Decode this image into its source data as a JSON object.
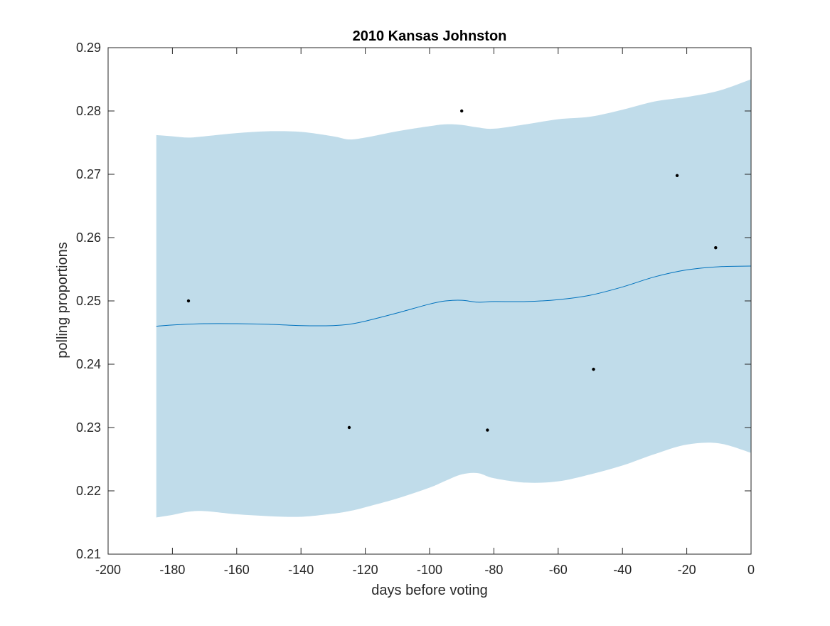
{
  "chart_data": {
    "type": "line",
    "title": "2010 Kansas Johnston",
    "xlabel": "days before voting",
    "ylabel": "polling proportions",
    "xlim": [
      -200,
      0
    ],
    "ylim": [
      0.21,
      0.29
    ],
    "xticks": [
      -200,
      -180,
      -160,
      -140,
      -120,
      -100,
      -80,
      -60,
      -40,
      -20,
      0
    ],
    "yticks": [
      0.21,
      0.22,
      0.23,
      0.24,
      0.25,
      0.26,
      0.27,
      0.28,
      0.29
    ],
    "xtick_labels": [
      "-200",
      "-180",
      "-160",
      "-140",
      "-120",
      "-100",
      "-80",
      "-60",
      "-40",
      "-20",
      "0"
    ],
    "ytick_labels": [
      "0.21",
      "0.22",
      "0.23",
      "0.24",
      "0.25",
      "0.26",
      "0.27",
      "0.28",
      "0.29"
    ],
    "grid": false,
    "colors": {
      "band": "#c0dcea",
      "line": "#0072bd",
      "points": "#000000",
      "axes": "#262626"
    },
    "band": {
      "x": [
        -185,
        -180,
        -175,
        -170,
        -160,
        -150,
        -140,
        -130,
        -125,
        -120,
        -110,
        -100,
        -95,
        -90,
        -85,
        -80,
        -70,
        -60,
        -50,
        -40,
        -30,
        -20,
        -10,
        0
      ],
      "upper": [
        0.2762,
        0.276,
        0.2758,
        0.276,
        0.2765,
        0.2768,
        0.2767,
        0.276,
        0.2755,
        0.2758,
        0.2768,
        0.2776,
        0.2779,
        0.2778,
        0.2774,
        0.2772,
        0.2779,
        0.2787,
        0.2791,
        0.2802,
        0.2815,
        0.2822,
        0.2832,
        0.285
      ],
      "lower": [
        0.2158,
        0.2162,
        0.2167,
        0.2168,
        0.2163,
        0.216,
        0.2159,
        0.2164,
        0.2168,
        0.2174,
        0.2188,
        0.2205,
        0.2216,
        0.2226,
        0.2228,
        0.222,
        0.2213,
        0.2215,
        0.2226,
        0.224,
        0.2258,
        0.2273,
        0.2275,
        0.226
      ]
    },
    "series": [
      {
        "type": "line",
        "x": [
          -185,
          -180,
          -170,
          -160,
          -150,
          -140,
          -130,
          -125,
          -120,
          -110,
          -100,
          -95,
          -90,
          -85,
          -80,
          -70,
          -60,
          -50,
          -40,
          -30,
          -20,
          -10,
          0
        ],
        "y": [
          0.246,
          0.2462,
          0.2464,
          0.2464,
          0.2463,
          0.2461,
          0.2461,
          0.2463,
          0.2468,
          0.2481,
          0.2495,
          0.25,
          0.2501,
          0.2498,
          0.2499,
          0.2499,
          0.2502,
          0.2509,
          0.2522,
          0.2538,
          0.2549,
          0.2554,
          0.2555
        ]
      },
      {
        "type": "scatter",
        "x": [
          -175,
          -125,
          -90,
          -82,
          -49,
          -23,
          -11
        ],
        "y": [
          0.25,
          0.23,
          0.28,
          0.2296,
          0.2392,
          0.2698,
          0.2584
        ]
      }
    ]
  }
}
